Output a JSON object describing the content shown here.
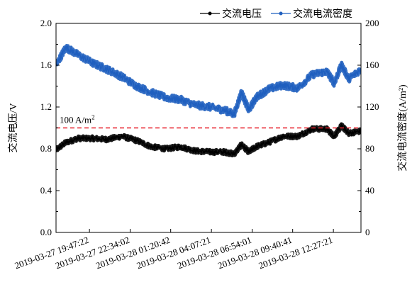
{
  "chart_data": {
    "type": "line",
    "title": "",
    "legend": {
      "position": "top-right",
      "entries": [
        {
          "label": "交流电压",
          "color": "#000000"
        },
        {
          "label": "交流电流密度",
          "color": "#1f5fbf"
        }
      ]
    },
    "y_left": {
      "label": "交流电压/V",
      "range": [
        0.0,
        2.0
      ],
      "ticks": [
        "0.0",
        "0.4",
        "0.8",
        "1.2",
        "1.6",
        "2.0"
      ]
    },
    "y_right": {
      "label": "交流电流密度(A/m²)",
      "range": [
        0,
        200
      ],
      "ticks": [
        "0",
        "40",
        "80",
        "120",
        "160",
        "200"
      ]
    },
    "x_axis": {
      "range": [
        "2019-03-27 17:30",
        "2019-03-28 14:20"
      ],
      "tick_labels": [
        "2019-03-27 19:47:22",
        "2019-03-27 22:34:02",
        "2019-03-28 01:20:42",
        "2019-03-28 04:07:21",
        "2019-03-28 06:54:01",
        "2019-03-28 09:40:41",
        "2019-03-28 12:27:21"
      ]
    },
    "annotation": {
      "text_main": "100 A/m",
      "text_sup": "2",
      "value_right_axis": 100,
      "style": "dashed",
      "color": "#e8202a"
    },
    "series": [
      {
        "name": "交流电压",
        "axis": "left",
        "color": "#000000",
        "x": [
          "2019-03-27 17:30",
          "2019-03-27 18:10",
          "2019-03-27 19:00",
          "2019-03-27 20:00",
          "2019-03-27 21:00",
          "2019-03-27 22:00",
          "2019-03-27 23:00",
          "2019-03-28 00:00",
          "2019-03-28 01:00",
          "2019-03-28 02:00",
          "2019-03-28 03:00",
          "2019-03-28 04:00",
          "2019-03-28 05:00",
          "2019-03-28 05:40",
          "2019-03-28 06:10",
          "2019-03-28 06:40",
          "2019-03-28 07:10",
          "2019-03-28 08:00",
          "2019-03-28 09:00",
          "2019-03-28 10:00",
          "2019-03-28 11:00",
          "2019-03-28 12:00",
          "2019-03-28 12:30",
          "2019-03-28 13:00",
          "2019-03-28 13:30",
          "2019-03-28 14:20"
        ],
        "y": [
          0.79,
          0.86,
          0.9,
          0.9,
          0.89,
          0.92,
          0.88,
          0.82,
          0.8,
          0.82,
          0.78,
          0.77,
          0.77,
          0.75,
          0.84,
          0.77,
          0.82,
          0.86,
          0.92,
          0.92,
          0.99,
          0.99,
          0.92,
          1.02,
          0.95,
          0.97
        ]
      },
      {
        "name": "交流电流密度",
        "axis": "right",
        "color": "#1f5fbf",
        "x": [
          "2019-03-27 17:30",
          "2019-03-27 18:10",
          "2019-03-27 19:00",
          "2019-03-27 20:00",
          "2019-03-27 21:00",
          "2019-03-27 22:00",
          "2019-03-27 23:00",
          "2019-03-28 00:00",
          "2019-03-28 01:00",
          "2019-03-28 02:00",
          "2019-03-28 03:00",
          "2019-03-28 04:00",
          "2019-03-28 05:00",
          "2019-03-28 05:40",
          "2019-03-28 06:10",
          "2019-03-28 06:40",
          "2019-03-28 07:10",
          "2019-03-28 08:00",
          "2019-03-28 09:00",
          "2019-03-28 10:00",
          "2019-03-28 11:00",
          "2019-03-28 12:00",
          "2019-03-28 12:30",
          "2019-03-28 13:00",
          "2019-03-28 13:30",
          "2019-03-28 14:20"
        ],
        "y": [
          160,
          177,
          170,
          162,
          156,
          149,
          140,
          134,
          129,
          127,
          122,
          120,
          117,
          113,
          134,
          117,
          129,
          137,
          141,
          138,
          151,
          154,
          143,
          160,
          147,
          156
        ]
      }
    ]
  }
}
